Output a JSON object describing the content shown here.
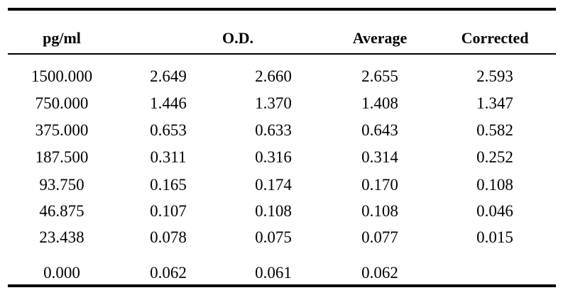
{
  "table": {
    "headers": {
      "conc": "pg/ml",
      "od": "O.D.",
      "average": "Average",
      "corrected": "Corrected"
    },
    "rows": [
      {
        "conc": "1500.000",
        "od1": "2.649",
        "od2": "2.660",
        "average": "2.655",
        "corrected": "2.593"
      },
      {
        "conc": "750.000",
        "od1": "1.446",
        "od2": "1.370",
        "average": "1.408",
        "corrected": "1.347"
      },
      {
        "conc": "375.000",
        "od1": "0.653",
        "od2": "0.633",
        "average": "0.643",
        "corrected": "0.582"
      },
      {
        "conc": "187.500",
        "od1": "0.311",
        "od2": "0.316",
        "average": "0.314",
        "corrected": "0.252"
      },
      {
        "conc": "93.750",
        "od1": "0.165",
        "od2": "0.174",
        "average": "0.170",
        "corrected": "0.108"
      },
      {
        "conc": "46.875",
        "od1": "0.107",
        "od2": "0.108",
        "average": "0.108",
        "corrected": "0.046"
      },
      {
        "conc": "23.438",
        "od1": "0.078",
        "od2": "0.075",
        "average": "0.077",
        "corrected": "0.015"
      },
      {
        "conc": "0.000",
        "od1": "0.062",
        "od2": "0.061",
        "average": "0.062",
        "corrected": ""
      }
    ]
  }
}
